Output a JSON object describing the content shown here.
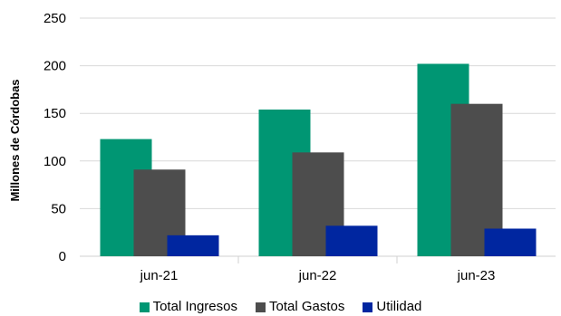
{
  "chart_data": {
    "type": "bar",
    "title": "",
    "xlabel": "",
    "ylabel": "Millones de Córdobas",
    "categories": [
      "jun-21",
      "jun-22",
      "jun-23"
    ],
    "series": [
      {
        "name": "Total Ingresos",
        "color": "#009673",
        "values": [
          123,
          154,
          202
        ]
      },
      {
        "name": "Total Gastos",
        "color": "#4d4d4d",
        "values": [
          91,
          109,
          160
        ]
      },
      {
        "name": "Utilidad",
        "color": "#0026a0",
        "values": [
          22,
          32,
          29
        ]
      }
    ],
    "ylim": [
      0,
      250
    ],
    "yticks": [
      "0",
      "50",
      "100",
      "150",
      "200",
      "250"
    ],
    "grid": true,
    "legend_position": "bottom"
  }
}
